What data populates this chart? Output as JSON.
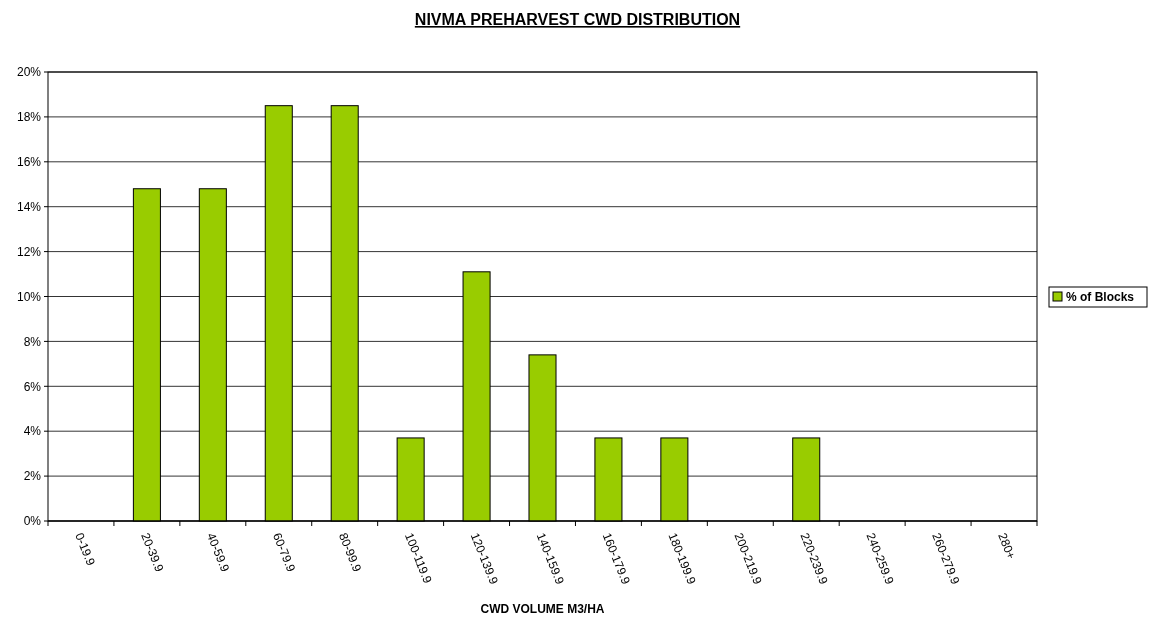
{
  "chart_data": {
    "type": "bar",
    "title": "NIVMA PREHARVEST CWD DISTRIBUTION",
    "xlabel": "CWD VOLUME M3/HA",
    "categories": [
      "0-19.9",
      "20-39.9",
      "40-59.9",
      "60-79.9",
      "80-99.9",
      "100-119.9",
      "120-139.9",
      "140-159.9",
      "160-179.9",
      "180-199.9",
      "200-219.9",
      "220-239.9",
      "240-259.9",
      "260-279.9",
      "280+"
    ],
    "series": [
      {
        "name": "% of Blocks",
        "color": "#99cc00",
        "values": [
          0,
          14.8,
          14.8,
          18.5,
          18.5,
          3.7,
          11.1,
          7.4,
          3.7,
          3.7,
          0,
          3.7,
          0,
          0,
          0
        ]
      }
    ],
    "ylim": [
      0,
      20
    ],
    "yticks": [
      {
        "value": 0,
        "label": "0%"
      },
      {
        "value": 2,
        "label": "2%"
      },
      {
        "value": 4,
        "label": "4%"
      },
      {
        "value": 6,
        "label": "6%"
      },
      {
        "value": 8,
        "label": "8%"
      },
      {
        "value": 10,
        "label": "10%"
      },
      {
        "value": 12,
        "label": "12%"
      },
      {
        "value": 14,
        "label": "14%"
      },
      {
        "value": 16,
        "label": "16%"
      },
      {
        "value": 18,
        "label": "18%"
      },
      {
        "value": 20,
        "label": "20%"
      }
    ],
    "grid": "y",
    "legend": "right"
  }
}
